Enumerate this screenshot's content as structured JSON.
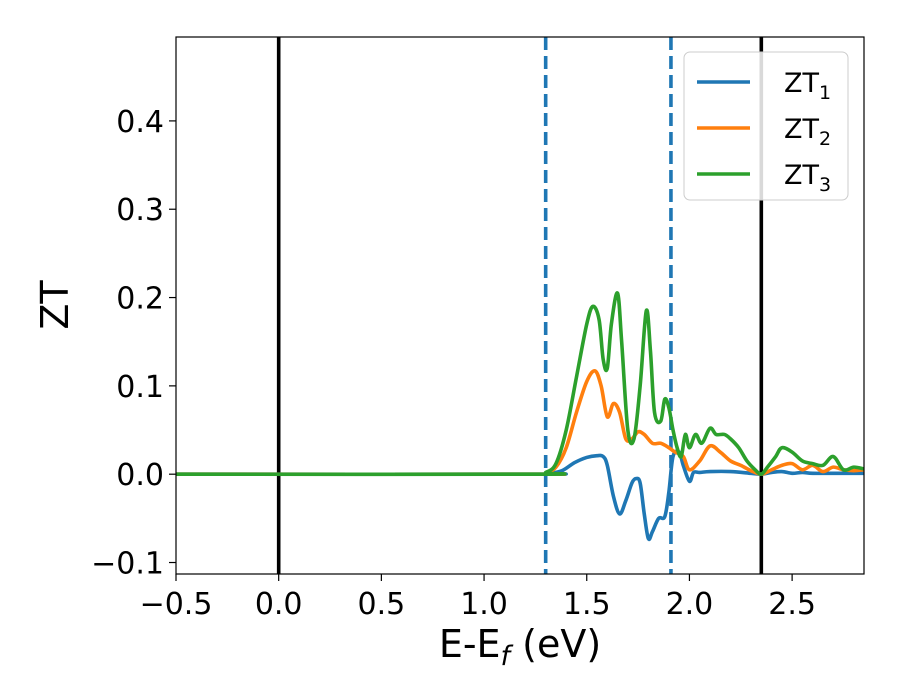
{
  "chart_data": {
    "type": "line",
    "xlabel": {
      "main": "E-E",
      "sub": "f",
      "suffix": " (eV)"
    },
    "ylabel": "ZT",
    "xlim": [
      -0.5,
      2.85
    ],
    "ylim": [
      -0.113,
      0.495
    ],
    "xticks": [
      -0.5,
      0.0,
      0.5,
      1.0,
      1.5,
      2.0,
      2.5
    ],
    "xtick_labels": [
      "−0.5",
      "0.0",
      "0.5",
      "1.0",
      "1.5",
      "2.0",
      "2.5"
    ],
    "yticks": [
      -0.1,
      0.0,
      0.1,
      0.2,
      0.3,
      0.4
    ],
    "ytick_labels": [
      "−0.1",
      "0.0",
      "0.1",
      "0.2",
      "0.3",
      "0.4"
    ],
    "grid": false,
    "legend_position": "top-right",
    "vlines": [
      {
        "x": 0.0,
        "style": "solid",
        "color": "#000000"
      },
      {
        "x": 2.35,
        "style": "solid",
        "color": "#000000"
      },
      {
        "x": 1.3,
        "style": "dashed",
        "color": "#1f77b4"
      },
      {
        "x": 1.91,
        "style": "dashed",
        "color": "#1f77b4"
      }
    ],
    "series": [
      {
        "name": "ZT",
        "name_sub": "1",
        "color": "#1f77b4",
        "x": [
          -0.5,
          1.25,
          1.32,
          1.38,
          1.44,
          1.5,
          1.55,
          1.58,
          1.6,
          1.63,
          1.66,
          1.69,
          1.72,
          1.74,
          1.76,
          1.78,
          1.8,
          1.82,
          1.85,
          1.88,
          1.9,
          1.92,
          1.95,
          1.97,
          2.0,
          2.02,
          2.05,
          2.1,
          2.2,
          2.3,
          2.35,
          2.4,
          2.45,
          2.5,
          2.55,
          2.6,
          2.7,
          2.85
        ],
        "y": [
          0.0,
          0.0,
          0.001,
          0.004,
          0.013,
          0.019,
          0.021,
          0.02,
          0.01,
          -0.025,
          -0.045,
          -0.03,
          -0.01,
          -0.005,
          -0.01,
          -0.045,
          -0.073,
          -0.065,
          -0.05,
          -0.048,
          -0.02,
          0.02,
          0.025,
          0.01,
          -0.008,
          0.002,
          0.002,
          0.003,
          0.003,
          0.001,
          0.0,
          0.002,
          0.003,
          0.001,
          0.002,
          0.001,
          0.001,
          0.001
        ]
      },
      {
        "name": "ZT",
        "name_sub": "2",
        "color": "#ff7f0e",
        "x": [
          -0.5,
          1.25,
          1.3,
          1.35,
          1.4,
          1.45,
          1.5,
          1.54,
          1.57,
          1.6,
          1.63,
          1.66,
          1.69,
          1.72,
          1.75,
          1.78,
          1.82,
          1.86,
          1.9,
          1.93,
          1.97,
          2.0,
          2.05,
          2.1,
          2.15,
          2.2,
          2.25,
          2.3,
          2.35,
          2.4,
          2.45,
          2.5,
          2.55,
          2.6,
          2.65,
          2.7,
          2.75,
          2.8,
          2.85
        ],
        "y": [
          0.0,
          0.0,
          0.001,
          0.008,
          0.03,
          0.07,
          0.105,
          0.117,
          0.1,
          0.065,
          0.08,
          0.07,
          0.04,
          0.04,
          0.048,
          0.045,
          0.035,
          0.035,
          0.03,
          0.025,
          0.02,
          0.005,
          0.015,
          0.032,
          0.025,
          0.015,
          0.01,
          0.004,
          0.0,
          0.005,
          0.01,
          0.012,
          0.005,
          0.01,
          0.003,
          0.008,
          0.005,
          0.004,
          0.005
        ]
      },
      {
        "name": "ZT",
        "name_sub": "3",
        "color": "#2ca02c",
        "x": [
          -0.5,
          1.25,
          1.3,
          1.35,
          1.4,
          1.45,
          1.5,
          1.53,
          1.56,
          1.58,
          1.6,
          1.62,
          1.65,
          1.67,
          1.7,
          1.73,
          1.76,
          1.79,
          1.81,
          1.83,
          1.86,
          1.88,
          1.9,
          1.92,
          1.94,
          1.96,
          1.98,
          2.0,
          2.03,
          2.06,
          2.1,
          2.13,
          2.17,
          2.2,
          2.24,
          2.28,
          2.32,
          2.35,
          2.38,
          2.42,
          2.45,
          2.5,
          2.55,
          2.6,
          2.65,
          2.7,
          2.75,
          2.8,
          2.85
        ],
        "y": [
          0.0,
          0.0,
          0.002,
          0.012,
          0.05,
          0.11,
          0.17,
          0.19,
          0.175,
          0.13,
          0.12,
          0.17,
          0.205,
          0.15,
          0.05,
          0.04,
          0.1,
          0.185,
          0.14,
          0.07,
          0.06,
          0.085,
          0.075,
          0.05,
          0.03,
          0.02,
          0.045,
          0.03,
          0.045,
          0.035,
          0.052,
          0.045,
          0.045,
          0.04,
          0.03,
          0.015,
          0.005,
          0.0,
          0.008,
          0.02,
          0.03,
          0.025,
          0.015,
          0.012,
          0.01,
          0.02,
          0.005,
          0.008,
          0.006
        ]
      }
    ]
  }
}
